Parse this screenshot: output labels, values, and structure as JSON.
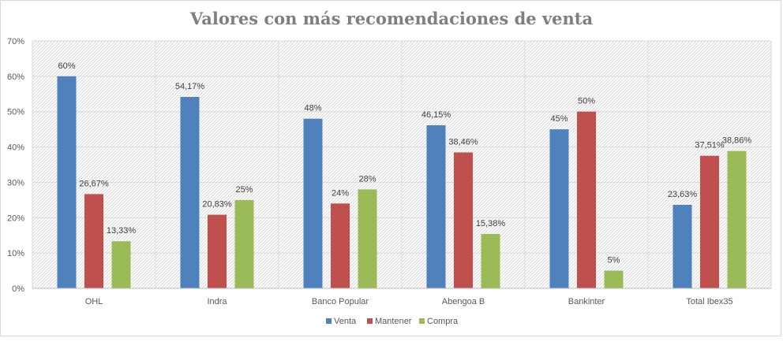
{
  "chart_data": {
    "type": "bar",
    "title": "Valores con más recomendaciones de venta",
    "categories": [
      "OHL",
      "Indra",
      "Banco Popular",
      "Abengoa B",
      "Bankinter",
      "Total Ibex35"
    ],
    "series": [
      {
        "name": "Venta",
        "color": "#4f81bd",
        "values": [
          60,
          54.17,
          48,
          46.15,
          45,
          23.63
        ],
        "labels": [
          "60%",
          "54,17%",
          "48%",
          "46,15%",
          "45%",
          "23,63%"
        ]
      },
      {
        "name": "Mantener",
        "color": "#c0504d",
        "values": [
          26.67,
          20.83,
          24,
          38.46,
          50,
          37.51
        ],
        "labels": [
          "26,67%",
          "20,83%",
          "24%",
          "38,46%",
          "50%",
          "37,51%"
        ]
      },
      {
        "name": "Compra",
        "color": "#9bbb59",
        "values": [
          13.33,
          25,
          28,
          15.38,
          5,
          38.86
        ],
        "labels": [
          "13,33%",
          "25%",
          "28%",
          "15,38%",
          "5%",
          "38,86%"
        ]
      }
    ],
    "ylim": [
      0,
      70
    ],
    "yticks": [
      "0%",
      "10%",
      "20%",
      "30%",
      "40%",
      "50%",
      "60%",
      "70%"
    ],
    "grid": true,
    "legend_position": "bottom"
  }
}
